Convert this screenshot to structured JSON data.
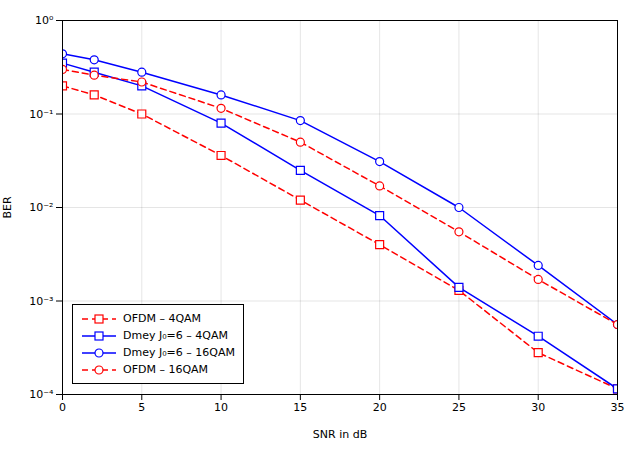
{
  "chart_data": {
    "type": "line",
    "x": [
      0,
      2,
      5,
      10,
      15,
      20,
      25,
      30,
      35
    ],
    "series": [
      {
        "name": "OFDM – 4QAM",
        "color": "red",
        "marker": "square",
        "line_style": "dashed",
        "values": [
          0.2,
          0.16,
          0.1,
          0.036,
          0.012,
          0.004,
          0.0013,
          0.00028,
          0.000115
        ]
      },
      {
        "name": "Dmey J₀=6 – 4QAM",
        "color": "blue",
        "marker": "square",
        "line_style": "solid",
        "values": [
          0.35,
          0.28,
          0.2,
          0.08,
          0.025,
          0.0082,
          0.0014,
          0.00042,
          0.000115
        ]
      },
      {
        "name": "Dmey J₀=6 – 16QAM",
        "color": "blue",
        "marker": "circle",
        "line_style": "solid",
        "values": [
          0.44,
          0.38,
          0.28,
          0.16,
          0.085,
          0.031,
          0.01,
          0.0024,
          0.00056
        ]
      },
      {
        "name": "OFDM – 16QAM",
        "color": "red",
        "marker": "circle",
        "line_style": "dashed",
        "values": [
          0.3,
          0.26,
          0.22,
          0.115,
          0.05,
          0.017,
          0.0055,
          0.0017,
          0.00056
        ]
      }
    ],
    "x_label": "SNR in dB",
    "y_label": "BER",
    "xlim": [
      0,
      35
    ],
    "xticks": [
      0,
      5,
      10,
      15,
      20,
      25,
      30,
      35
    ],
    "ylim": [
      0.0001,
      1.0
    ],
    "yticks": [
      {
        "value": 0.0001,
        "label": "10⁻⁴"
      },
      {
        "value": 0.001,
        "label": "10⁻³"
      },
      {
        "value": 0.01,
        "label": "10⁻²"
      },
      {
        "value": 0.1,
        "label": "10⁻¹"
      },
      {
        "value": 1.0,
        "label": "10⁰"
      }
    ],
    "log": "y",
    "grid": true,
    "legend": "lower left"
  }
}
